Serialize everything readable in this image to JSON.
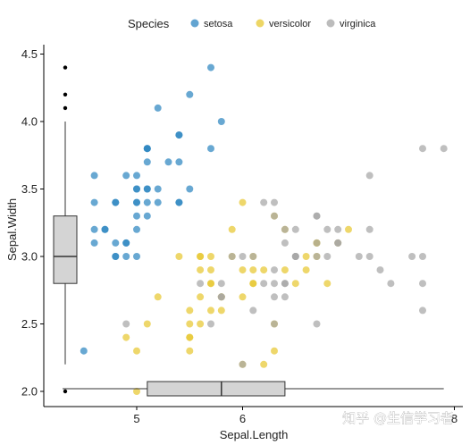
{
  "chart_data": {
    "type": "scatter",
    "title": "",
    "xlabel": "Sepal.Length",
    "ylabel": "Sepal.Width",
    "xlim": [
      4.2,
      8.1
    ],
    "ylim": [
      1.9,
      4.5
    ],
    "x_ticks": [
      {
        "value": 5,
        "label": "5"
      },
      {
        "value": 6,
        "label": "6"
      },
      {
        "value": 8,
        "label": "8"
      }
    ],
    "y_ticks": [
      {
        "value": 2.0,
        "label": "2.0"
      },
      {
        "value": 2.5,
        "label": "2.5"
      },
      {
        "value": 3.0,
        "label": "3.0"
      },
      {
        "value": 3.5,
        "label": "3.5"
      },
      {
        "value": 4.0,
        "label": "4.0"
      },
      {
        "value": 4.5,
        "label": "4.5"
      }
    ],
    "grid": false,
    "legend": {
      "title": "Species",
      "position": "top"
    },
    "series": [
      {
        "name": "setosa",
        "color": "#2E86C1",
        "points": [
          [
            5.1,
            3.5
          ],
          [
            4.9,
            3.0
          ],
          [
            4.7,
            3.2
          ],
          [
            4.6,
            3.1
          ],
          [
            5.0,
            3.6
          ],
          [
            5.4,
            3.9
          ],
          [
            4.6,
            3.4
          ],
          [
            5.0,
            3.4
          ],
          [
            4.4,
            2.9
          ],
          [
            4.9,
            3.1
          ],
          [
            5.4,
            3.7
          ],
          [
            4.8,
            3.4
          ],
          [
            4.8,
            3.0
          ],
          [
            4.3,
            3.0
          ],
          [
            5.8,
            4.0
          ],
          [
            5.7,
            4.4
          ],
          [
            5.4,
            3.9
          ],
          [
            5.1,
            3.5
          ],
          [
            5.7,
            3.8
          ],
          [
            5.1,
            3.8
          ],
          [
            5.4,
            3.4
          ],
          [
            5.1,
            3.7
          ],
          [
            4.6,
            3.6
          ],
          [
            5.1,
            3.3
          ],
          [
            4.8,
            3.4
          ],
          [
            5.0,
            3.0
          ],
          [
            5.0,
            3.4
          ],
          [
            5.2,
            3.5
          ],
          [
            5.2,
            3.4
          ],
          [
            4.7,
            3.2
          ],
          [
            4.8,
            3.1
          ],
          [
            5.4,
            3.4
          ],
          [
            5.2,
            4.1
          ],
          [
            5.5,
            4.2
          ],
          [
            4.9,
            3.1
          ],
          [
            5.0,
            3.2
          ],
          [
            5.5,
            3.5
          ],
          [
            4.9,
            3.6
          ],
          [
            4.4,
            3.0
          ],
          [
            5.1,
            3.4
          ],
          [
            5.0,
            3.5
          ],
          [
            4.5,
            2.3
          ],
          [
            4.4,
            3.2
          ],
          [
            5.0,
            3.5
          ],
          [
            5.1,
            3.8
          ],
          [
            4.8,
            3.0
          ],
          [
            5.1,
            3.8
          ],
          [
            4.6,
            3.2
          ],
          [
            5.3,
            3.7
          ],
          [
            5.0,
            3.3
          ]
        ]
      },
      {
        "name": "versicolor",
        "color": "#E7C832",
        "points": [
          [
            7.0,
            3.2
          ],
          [
            6.4,
            3.2
          ],
          [
            6.9,
            3.1
          ],
          [
            5.5,
            2.3
          ],
          [
            6.5,
            2.8
          ],
          [
            5.7,
            2.8
          ],
          [
            6.3,
            3.3
          ],
          [
            4.9,
            2.4
          ],
          [
            6.6,
            2.9
          ],
          [
            5.2,
            2.7
          ],
          [
            5.0,
            2.0
          ],
          [
            5.9,
            3.0
          ],
          [
            6.0,
            2.2
          ],
          [
            6.1,
            2.9
          ],
          [
            5.6,
            2.9
          ],
          [
            6.7,
            3.1
          ],
          [
            5.6,
            3.0
          ],
          [
            5.8,
            2.7
          ],
          [
            6.2,
            2.2
          ],
          [
            5.6,
            2.5
          ],
          [
            5.9,
            3.2
          ],
          [
            6.1,
            2.8
          ],
          [
            6.3,
            2.5
          ],
          [
            6.1,
            2.8
          ],
          [
            6.4,
            2.9
          ],
          [
            6.6,
            3.0
          ],
          [
            6.8,
            2.8
          ],
          [
            6.7,
            3.0
          ],
          [
            6.0,
            2.9
          ],
          [
            5.7,
            2.6
          ],
          [
            5.5,
            2.4
          ],
          [
            5.5,
            2.4
          ],
          [
            5.8,
            2.7
          ],
          [
            6.0,
            2.7
          ],
          [
            5.4,
            3.0
          ],
          [
            6.0,
            3.4
          ],
          [
            6.7,
            3.1
          ],
          [
            6.3,
            2.3
          ],
          [
            5.6,
            3.0
          ],
          [
            5.5,
            2.5
          ],
          [
            5.5,
            2.6
          ],
          [
            6.1,
            3.0
          ],
          [
            5.8,
            2.6
          ],
          [
            5.0,
            2.3
          ],
          [
            5.6,
            2.7
          ],
          [
            5.7,
            3.0
          ],
          [
            5.7,
            2.9
          ],
          [
            6.2,
            2.9
          ],
          [
            5.1,
            2.5
          ],
          [
            5.7,
            2.8
          ]
        ]
      },
      {
        "name": "virginica",
        "color": "#A6A6A6",
        "points": [
          [
            6.3,
            3.3
          ],
          [
            5.8,
            2.7
          ],
          [
            7.1,
            3.0
          ],
          [
            6.3,
            2.9
          ],
          [
            6.5,
            3.0
          ],
          [
            7.6,
            3.0
          ],
          [
            4.9,
            2.5
          ],
          [
            7.3,
            2.9
          ],
          [
            6.7,
            2.5
          ],
          [
            7.2,
            3.6
          ],
          [
            6.5,
            3.2
          ],
          [
            6.4,
            2.7
          ],
          [
            6.8,
            3.0
          ],
          [
            5.7,
            2.5
          ],
          [
            5.8,
            2.8
          ],
          [
            6.4,
            3.2
          ],
          [
            6.5,
            3.0
          ],
          [
            7.7,
            3.8
          ],
          [
            7.7,
            2.6
          ],
          [
            6.0,
            2.2
          ],
          [
            6.9,
            3.2
          ],
          [
            5.6,
            2.8
          ],
          [
            7.7,
            2.8
          ],
          [
            6.3,
            2.7
          ],
          [
            6.7,
            3.3
          ],
          [
            7.2,
            3.2
          ],
          [
            6.2,
            2.8
          ],
          [
            6.1,
            3.0
          ],
          [
            6.4,
            2.8
          ],
          [
            7.2,
            3.0
          ],
          [
            7.4,
            2.8
          ],
          [
            7.9,
            3.8
          ],
          [
            6.4,
            2.8
          ],
          [
            6.3,
            2.8
          ],
          [
            6.1,
            2.6
          ],
          [
            7.7,
            3.0
          ],
          [
            6.3,
            3.4
          ],
          [
            6.4,
            3.1
          ],
          [
            6.0,
            3.0
          ],
          [
            6.9,
            3.1
          ],
          [
            6.7,
            3.1
          ],
          [
            6.9,
            3.1
          ],
          [
            5.8,
            2.7
          ],
          [
            6.8,
            3.2
          ],
          [
            6.7,
            3.3
          ],
          [
            6.7,
            3.0
          ],
          [
            6.3,
            2.5
          ],
          [
            6.5,
            3.0
          ],
          [
            6.2,
            3.4
          ],
          [
            5.9,
            3.0
          ]
        ]
      }
    ],
    "x_boxplot": {
      "whisker_low": 4.3,
      "q1": 5.1,
      "median": 5.8,
      "q3": 6.4,
      "whisker_high": 7.9,
      "outliers": []
    },
    "y_boxplot": {
      "whisker_low": 2.2,
      "q1": 2.8,
      "median": 3.0,
      "q3": 3.3,
      "whisker_high": 4.0,
      "outliers": [
        2.0,
        4.1,
        4.2,
        4.4
      ]
    }
  },
  "watermark": "知乎 @生信学习者"
}
